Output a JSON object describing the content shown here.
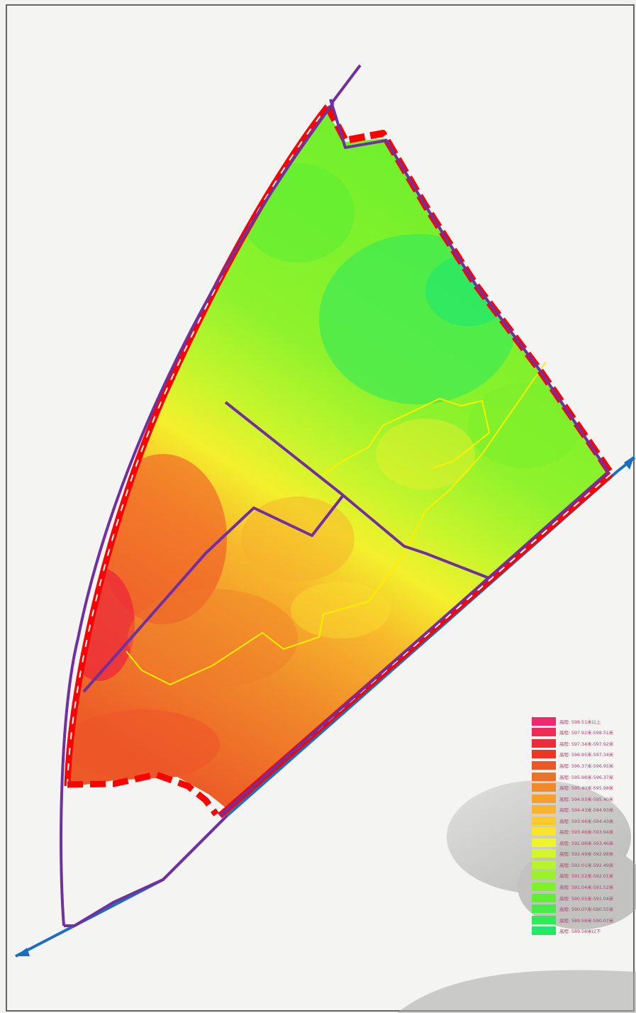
{
  "legend": {
    "items": [
      {
        "label": "高程: 598.51米以上",
        "color": "#f0286e"
      },
      {
        "label": "高程: 597.92米-598.51米",
        "color": "#f02a55"
      },
      {
        "label": "高程: 597.34米-597.92米",
        "color": "#ec2a38"
      },
      {
        "label": "高程: 596.95米-597.34米",
        "color": "#ec3526"
      },
      {
        "label": "高程: 596.37米-596.95米",
        "color": "#ee5528"
      },
      {
        "label": "高程: 595.98米-596.37米",
        "color": "#f0702a"
      },
      {
        "label": "高程: 595.40米-595.98米",
        "color": "#f3882a"
      },
      {
        "label": "高程: 594.93米-595.40米",
        "color": "#f5a02c"
      },
      {
        "label": "高程: 594.43米-594.93米",
        "color": "#f7b42c"
      },
      {
        "label": "高程: 593.94米-594.43米",
        "color": "#f9cc2c"
      },
      {
        "label": "高程: 593.46米-593.94米",
        "color": "#fae52c"
      },
      {
        "label": "高程: 592.98米-593.46米",
        "color": "#eef52c"
      },
      {
        "label": "高程: 592.49米-592.98米",
        "color": "#d2f52c"
      },
      {
        "label": "高程: 592.01米-592.49米",
        "color": "#b6f52c"
      },
      {
        "label": "高程: 591.52米-592.01米",
        "color": "#9af22c"
      },
      {
        "label": "高程: 591.04米-591.52米",
        "color": "#80f02c"
      },
      {
        "label": "高程: 590.55米-591.04米",
        "color": "#62ee34"
      },
      {
        "label": "高程: 590.07米-590.55米",
        "color": "#48ec42"
      },
      {
        "label": "高程: 589.58米-590.07米",
        "color": "#34ea52"
      },
      {
        "label": "高程: 589.58米以下",
        "color": "#22e866"
      }
    ]
  },
  "colors": {
    "boundary_red": "#ff0000",
    "site_line_purple": "#7030a0",
    "road_blue": "#1a6fc0",
    "contour_yellow": "#ffee00"
  }
}
